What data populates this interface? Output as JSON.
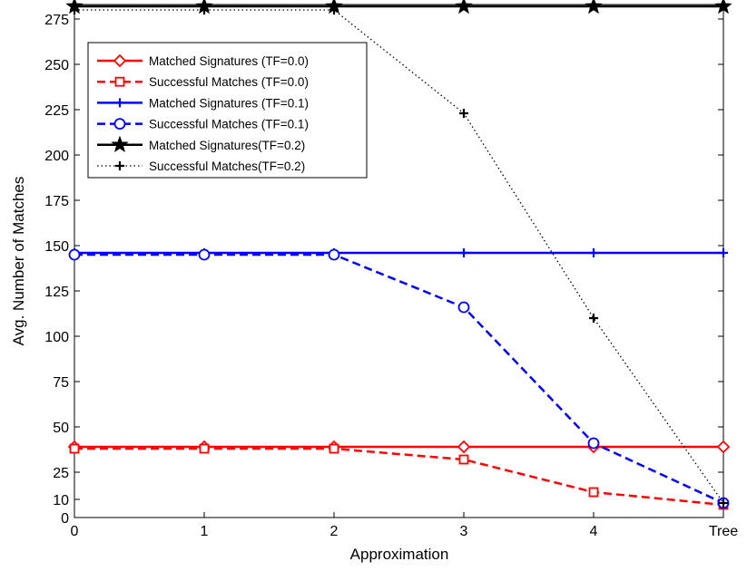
{
  "chart_data": {
    "type": "line",
    "title": "",
    "xlabel": "Approximation",
    "ylabel": "Avg. Number of Matches",
    "categories": [
      "0",
      "1",
      "2",
      "3",
      "4",
      "Tree"
    ],
    "yticks": [
      0,
      10,
      25,
      50,
      75,
      100,
      125,
      150,
      175,
      200,
      225,
      250,
      275
    ],
    "ylim": [
      0,
      283
    ],
    "grid": false,
    "legend_position": "top-left",
    "series": [
      {
        "name": "Matched Signatures (TF=0.0)",
        "values": [
          39,
          39,
          39,
          39,
          39,
          39
        ],
        "color": "#ff0000",
        "line": "solid",
        "marker": "diamond"
      },
      {
        "name": "Successful Matches (TF=0.0)",
        "values": [
          38,
          38,
          38,
          32,
          14,
          7
        ],
        "color": "#ff0000",
        "line": "dashed",
        "marker": "square"
      },
      {
        "name": "Matched Signatures (TF=0.1)",
        "values": [
          146,
          146,
          146,
          146,
          146,
          146
        ],
        "color": "#0000ff",
        "line": "solid",
        "marker": "plus"
      },
      {
        "name": "Successful Matches (TF=0.1)",
        "values": [
          145,
          145,
          145,
          116,
          41,
          8
        ],
        "color": "#0000ff",
        "line": "dashed",
        "marker": "circle"
      },
      {
        "name": "Matched Signatures(TF=0.2)",
        "values": [
          282,
          282,
          282,
          282,
          282,
          282
        ],
        "color": "#000000",
        "line": "solid",
        "marker": "star"
      },
      {
        "name": "Successful Matches(TF=0.2)",
        "values": [
          280,
          280,
          280,
          223,
          110,
          8
        ],
        "color": "#000000",
        "line": "dotted",
        "marker": "plus"
      }
    ]
  }
}
